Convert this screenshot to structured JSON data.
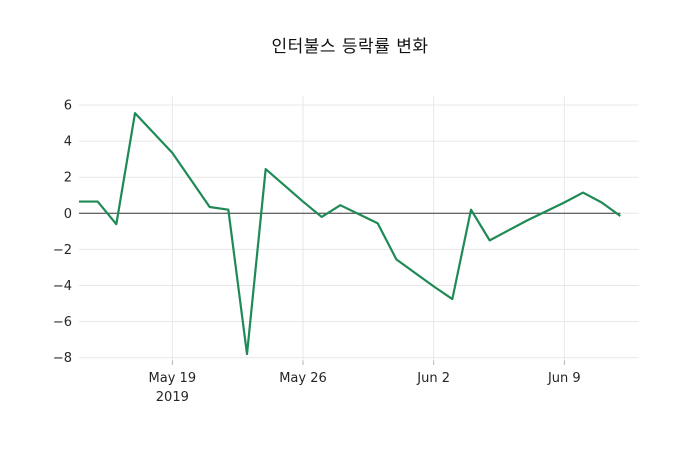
{
  "chart_data": {
    "type": "line",
    "title": "인터불스 등락률 변화",
    "xlabel": "",
    "ylabel": "",
    "legend": false,
    "grid": true,
    "x": [
      "2019-05-14",
      "2019-05-15",
      "2019-05-16",
      "2019-05-17",
      "2019-05-18",
      "2019-05-19",
      "2019-05-20",
      "2019-05-21",
      "2019-05-22",
      "2019-05-23",
      "2019-05-24",
      "2019-05-25",
      "2019-05-26",
      "2019-05-27",
      "2019-05-28",
      "2019-05-29",
      "2019-05-30",
      "2019-05-31",
      "2019-06-01",
      "2019-06-02",
      "2019-06-03",
      "2019-06-04",
      "2019-06-05",
      "2019-06-06",
      "2019-06-07",
      "2019-06-08",
      "2019-06-09",
      "2019-06-10",
      "2019-06-11",
      "2019-06-12"
    ],
    "values": [
      0.65,
      0.65,
      -0.6,
      5.55,
      4.45,
      3.35,
      1.85,
      0.35,
      0.2,
      -7.8,
      2.45,
      1.55,
      0.65,
      -0.2,
      0.45,
      -0.05,
      -0.55,
      -2.55,
      -3.3,
      -4.05,
      -4.75,
      0.2,
      -1.5,
      -0.95,
      -0.4,
      0.1,
      0.6,
      1.15,
      0.6,
      -0.15
    ],
    "xlim": [
      "2019-05-14",
      "2019-06-13"
    ],
    "ylim": [
      -8.15,
      6.5
    ],
    "yticks": [
      6,
      4,
      2,
      0,
      -2,
      -4,
      -6,
      -8
    ],
    "y_tick_labels": [
      "6",
      "4",
      "2",
      "0",
      "−2",
      "−4",
      "−6",
      "−8"
    ],
    "xticks": [
      {
        "date": "2019-05-19",
        "label": "May 19",
        "year_label": "2019"
      },
      {
        "date": "2019-05-26",
        "label": "May 26",
        "year_label": ""
      },
      {
        "date": "2019-06-02",
        "label": "Jun 2",
        "year_label": ""
      },
      {
        "date": "2019-06-09",
        "label": "Jun 9",
        "year_label": ""
      }
    ],
    "zero_line": 0,
    "colors": {
      "line": "#1e8a55",
      "zero_line": "#3a3a3a",
      "grid": "#e7e7e7",
      "tick_text": "#262626",
      "title_text": "#111111",
      "background": "#ffffff"
    }
  }
}
